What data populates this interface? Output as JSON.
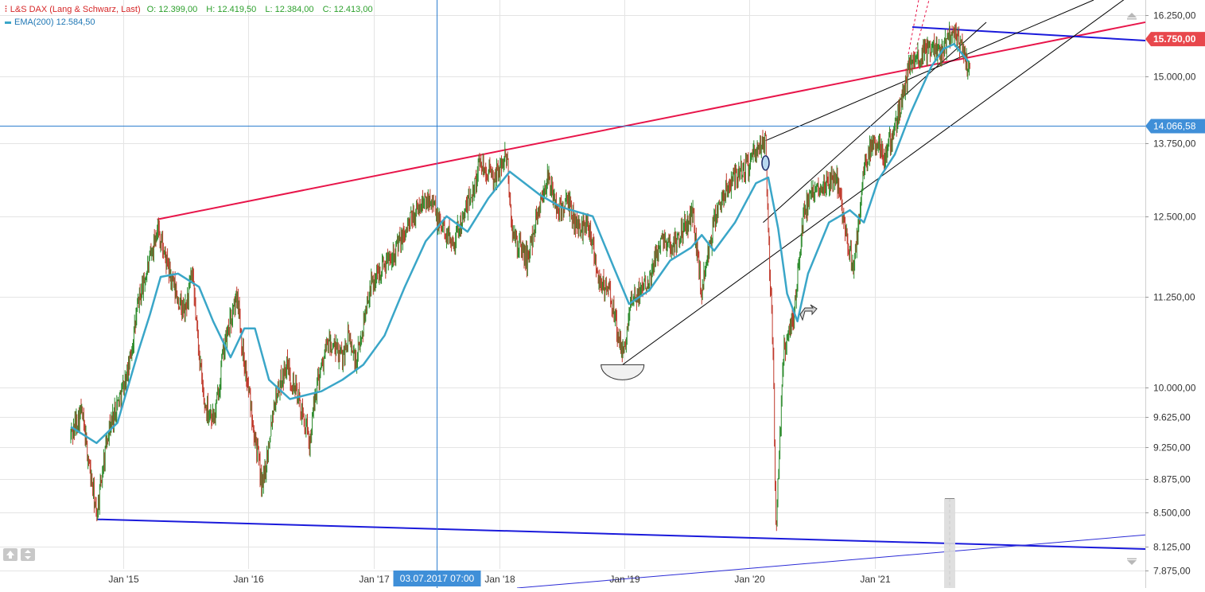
{
  "legend": {
    "symbol_icon": "candlestick-icon",
    "title": "L&S DAX (Lang & Schwarz, Last)",
    "open": "O: 12.399,00",
    "high": "H: 12.419,50",
    "low": "L: 12.384,00",
    "close": "C: 12.413,00",
    "ema_label": "EMA(200)",
    "ema_value": "12.584,50"
  },
  "colors": {
    "price_up": "#2a8a2a",
    "price_down": "#c0392b",
    "ema": "#3aa6c8",
    "red_trendline": "#e8154a",
    "blue_trendline": "#1a1adb",
    "thin_blue_line": "#2b2bd6",
    "black_lines": "#000000",
    "crosshair": "#2f7fd0",
    "grid": "#e4e4e4",
    "current_price_badge": "#e8474c",
    "crosshair_badge": "#3f8fd8"
  },
  "chart_data": {
    "type": "line",
    "title": "L&S DAX (Lang & Schwarz, Last)",
    "xlabel": "",
    "ylabel": "",
    "y_scale": "log",
    "ylim": [
      7800,
      16500
    ],
    "xlim": [
      "2014-07-15",
      "2022-10-15"
    ],
    "grid": true,
    "y_ticks": [
      7875,
      8125,
      8500,
      8875,
      9250,
      9625,
      10000,
      11250,
      12500,
      13750,
      15000,
      16250
    ],
    "y_tick_labels": [
      "7.875,00",
      "8.125,00",
      "8.500,00",
      "8.875,00",
      "9.250,00",
      "9.625,00",
      "10.000,00",
      "11.250,00",
      "12.500,00",
      "13.750,00",
      "15.000,00",
      "16.250,00"
    ],
    "x_ticks": [
      "2015-01-01",
      "2016-01-01",
      "2017-01-01",
      "2018-01-01",
      "2019-01-01",
      "2020-01-01",
      "2021-01-01"
    ],
    "x_tick_labels": [
      "Jan '15",
      "Jan '16",
      "Jan '17",
      "Jan '18",
      "Jan '19",
      "Jan '20",
      "Jan '21"
    ],
    "series": [
      {
        "name": "L&S DAX",
        "kind": "price",
        "points": [
          [
            "2014-08-01",
            9400
          ],
          [
            "2014-09-01",
            9700
          ],
          [
            "2014-10-15",
            8450
          ],
          [
            "2014-11-15",
            9400
          ],
          [
            "2014-12-15",
            9800
          ],
          [
            "2015-01-15",
            10200
          ],
          [
            "2015-02-15",
            11200
          ],
          [
            "2015-03-20",
            11800
          ],
          [
            "2015-04-10",
            12350
          ],
          [
            "2015-05-10",
            11700
          ],
          [
            "2015-06-10",
            11200
          ],
          [
            "2015-06-29",
            11000
          ],
          [
            "2015-07-20",
            11600
          ],
          [
            "2015-08-24",
            9800
          ],
          [
            "2015-09-25",
            9600
          ],
          [
            "2015-10-20",
            10500
          ],
          [
            "2015-11-30",
            11300
          ],
          [
            "2015-12-15",
            10500
          ],
          [
            "2016-01-20",
            9400
          ],
          [
            "2016-02-11",
            8750
          ],
          [
            "2016-03-15",
            9800
          ],
          [
            "2016-04-20",
            10300
          ],
          [
            "2016-05-20",
            9950
          ],
          [
            "2016-06-27",
            9300
          ],
          [
            "2016-07-20",
            10100
          ],
          [
            "2016-08-20",
            10600
          ],
          [
            "2016-09-30",
            10400
          ],
          [
            "2016-10-20",
            10700
          ],
          [
            "2016-11-10",
            10300
          ],
          [
            "2016-12-20",
            11400
          ],
          [
            "2017-01-25",
            11700
          ],
          [
            "2017-02-20",
            11900
          ],
          [
            "2017-03-20",
            12100
          ],
          [
            "2017-04-20",
            12450
          ],
          [
            "2017-05-20",
            12700
          ],
          [
            "2017-06-20",
            12850
          ],
          [
            "2017-07-03",
            12450
          ],
          [
            "2017-08-20",
            12100
          ],
          [
            "2017-09-20",
            12500
          ],
          [
            "2017-10-20",
            13000
          ],
          [
            "2017-11-07",
            13450
          ],
          [
            "2017-12-15",
            13100
          ],
          [
            "2018-01-23",
            13550
          ],
          [
            "2018-02-09",
            12200
          ],
          [
            "2018-03-26",
            11800
          ],
          [
            "2018-04-20",
            12500
          ],
          [
            "2018-05-22",
            13150
          ],
          [
            "2018-06-20",
            12600
          ],
          [
            "2018-07-20",
            12700
          ],
          [
            "2018-08-20",
            12300
          ],
          [
            "2018-09-20",
            12400
          ],
          [
            "2018-10-20",
            11500
          ],
          [
            "2018-11-20",
            11300
          ],
          [
            "2018-12-27",
            10400
          ],
          [
            "2019-01-20",
            11100
          ],
          [
            "2019-02-20",
            11400
          ],
          [
            "2019-03-20",
            11600
          ],
          [
            "2019-04-20",
            12200
          ],
          [
            "2019-05-20",
            12000
          ],
          [
            "2019-06-20",
            12300
          ],
          [
            "2019-07-20",
            12500
          ],
          [
            "2019-08-15",
            11350
          ],
          [
            "2019-09-20",
            12400
          ],
          [
            "2019-10-20",
            12900
          ],
          [
            "2019-11-20",
            13200
          ],
          [
            "2019-12-20",
            13300
          ],
          [
            "2020-02-17",
            13795
          ],
          [
            "2020-02-27",
            12000
          ],
          [
            "2020-03-10",
            10500
          ],
          [
            "2020-03-18",
            8300
          ],
          [
            "2020-04-10",
            10500
          ],
          [
            "2020-05-10",
            11000
          ],
          [
            "2020-06-08",
            12600
          ],
          [
            "2020-07-20",
            13000
          ],
          [
            "2020-09-10",
            13200
          ],
          [
            "2020-10-30",
            11600
          ],
          [
            "2020-11-30",
            13300
          ],
          [
            "2020-12-31",
            13800
          ],
          [
            "2021-01-29",
            13500
          ],
          [
            "2021-02-28",
            14000
          ],
          [
            "2021-04-15",
            15300
          ],
          [
            "2021-05-20",
            15400
          ],
          [
            "2021-06-20",
            15600
          ],
          [
            "2021-07-20",
            15500
          ],
          [
            "2021-08-13",
            15950
          ],
          [
            "2021-09-10",
            15600
          ],
          [
            "2021-09-30",
            15150
          ],
          [
            "2021-10-05",
            15200
          ]
        ]
      },
      {
        "name": "EMA(200)",
        "kind": "ema",
        "points": [
          [
            "2014-08-01",
            9500
          ],
          [
            "2014-10-15",
            9300
          ],
          [
            "2014-12-15",
            9550
          ],
          [
            "2015-02-15",
            10500
          ],
          [
            "2015-03-20",
            11000
          ],
          [
            "2015-04-20",
            11550
          ],
          [
            "2015-06-10",
            11600
          ],
          [
            "2015-08-10",
            11400
          ],
          [
            "2015-09-20",
            10900
          ],
          [
            "2015-11-10",
            10400
          ],
          [
            "2015-12-20",
            10800
          ],
          [
            "2016-01-20",
            10800
          ],
          [
            "2016-03-01",
            10100
          ],
          [
            "2016-05-01",
            9850
          ],
          [
            "2016-08-01",
            9950
          ],
          [
            "2016-10-01",
            10100
          ],
          [
            "2016-12-01",
            10300
          ],
          [
            "2017-02-01",
            10700
          ],
          [
            "2017-04-01",
            11400
          ],
          [
            "2017-06-01",
            12100
          ],
          [
            "2017-08-01",
            12500
          ],
          [
            "2017-10-01",
            12250
          ],
          [
            "2017-12-01",
            12800
          ],
          [
            "2018-02-01",
            13250
          ],
          [
            "2018-05-01",
            12850
          ],
          [
            "2018-07-01",
            12650
          ],
          [
            "2018-10-01",
            12500
          ],
          [
            "2018-12-01",
            11700
          ],
          [
            "2019-01-15",
            11150
          ],
          [
            "2019-03-15",
            11350
          ],
          [
            "2019-05-15",
            11800
          ],
          [
            "2019-07-15",
            12000
          ],
          [
            "2019-08-15",
            12200
          ],
          [
            "2019-09-20",
            11950
          ],
          [
            "2019-11-20",
            12400
          ],
          [
            "2020-01-20",
            13050
          ],
          [
            "2020-02-25",
            13150
          ],
          [
            "2020-03-25",
            12300
          ],
          [
            "2020-04-20",
            11300
          ],
          [
            "2020-05-20",
            10900
          ],
          [
            "2020-06-20",
            11600
          ],
          [
            "2020-08-20",
            12400
          ],
          [
            "2020-10-20",
            12600
          ],
          [
            "2020-11-30",
            12400
          ],
          [
            "2021-01-10",
            13100
          ],
          [
            "2021-02-28",
            13550
          ],
          [
            "2021-04-15",
            14300
          ],
          [
            "2021-06-15",
            15200
          ],
          [
            "2021-07-20",
            15550
          ],
          [
            "2021-08-20",
            15650
          ],
          [
            "2021-09-30",
            15300
          ]
        ]
      }
    ],
    "annotations": {
      "price_badge": "15.750,00",
      "crosshair_y_badge": "14.066,58",
      "crosshair_x_badge": "03.07.2017 07:00",
      "drawings": [
        "red ascending trendline",
        "blue flat support line",
        "blue horizontal top line",
        "black trendlines from Dec '18 low and Feb '20 high",
        "semicircle marker at Dec '18 low",
        "ellipse marker at Feb '20 high",
        "arrow marker",
        "thin blue rising line",
        "dashed red lines",
        "shaded vertical marker"
      ]
    }
  },
  "controls": {
    "scroll_up_icon": "scroll-up-icon",
    "scroll_down_icon": "scroll-down-icon",
    "home_icon": "home-icon",
    "zoom_icon": "zoom-icon"
  }
}
